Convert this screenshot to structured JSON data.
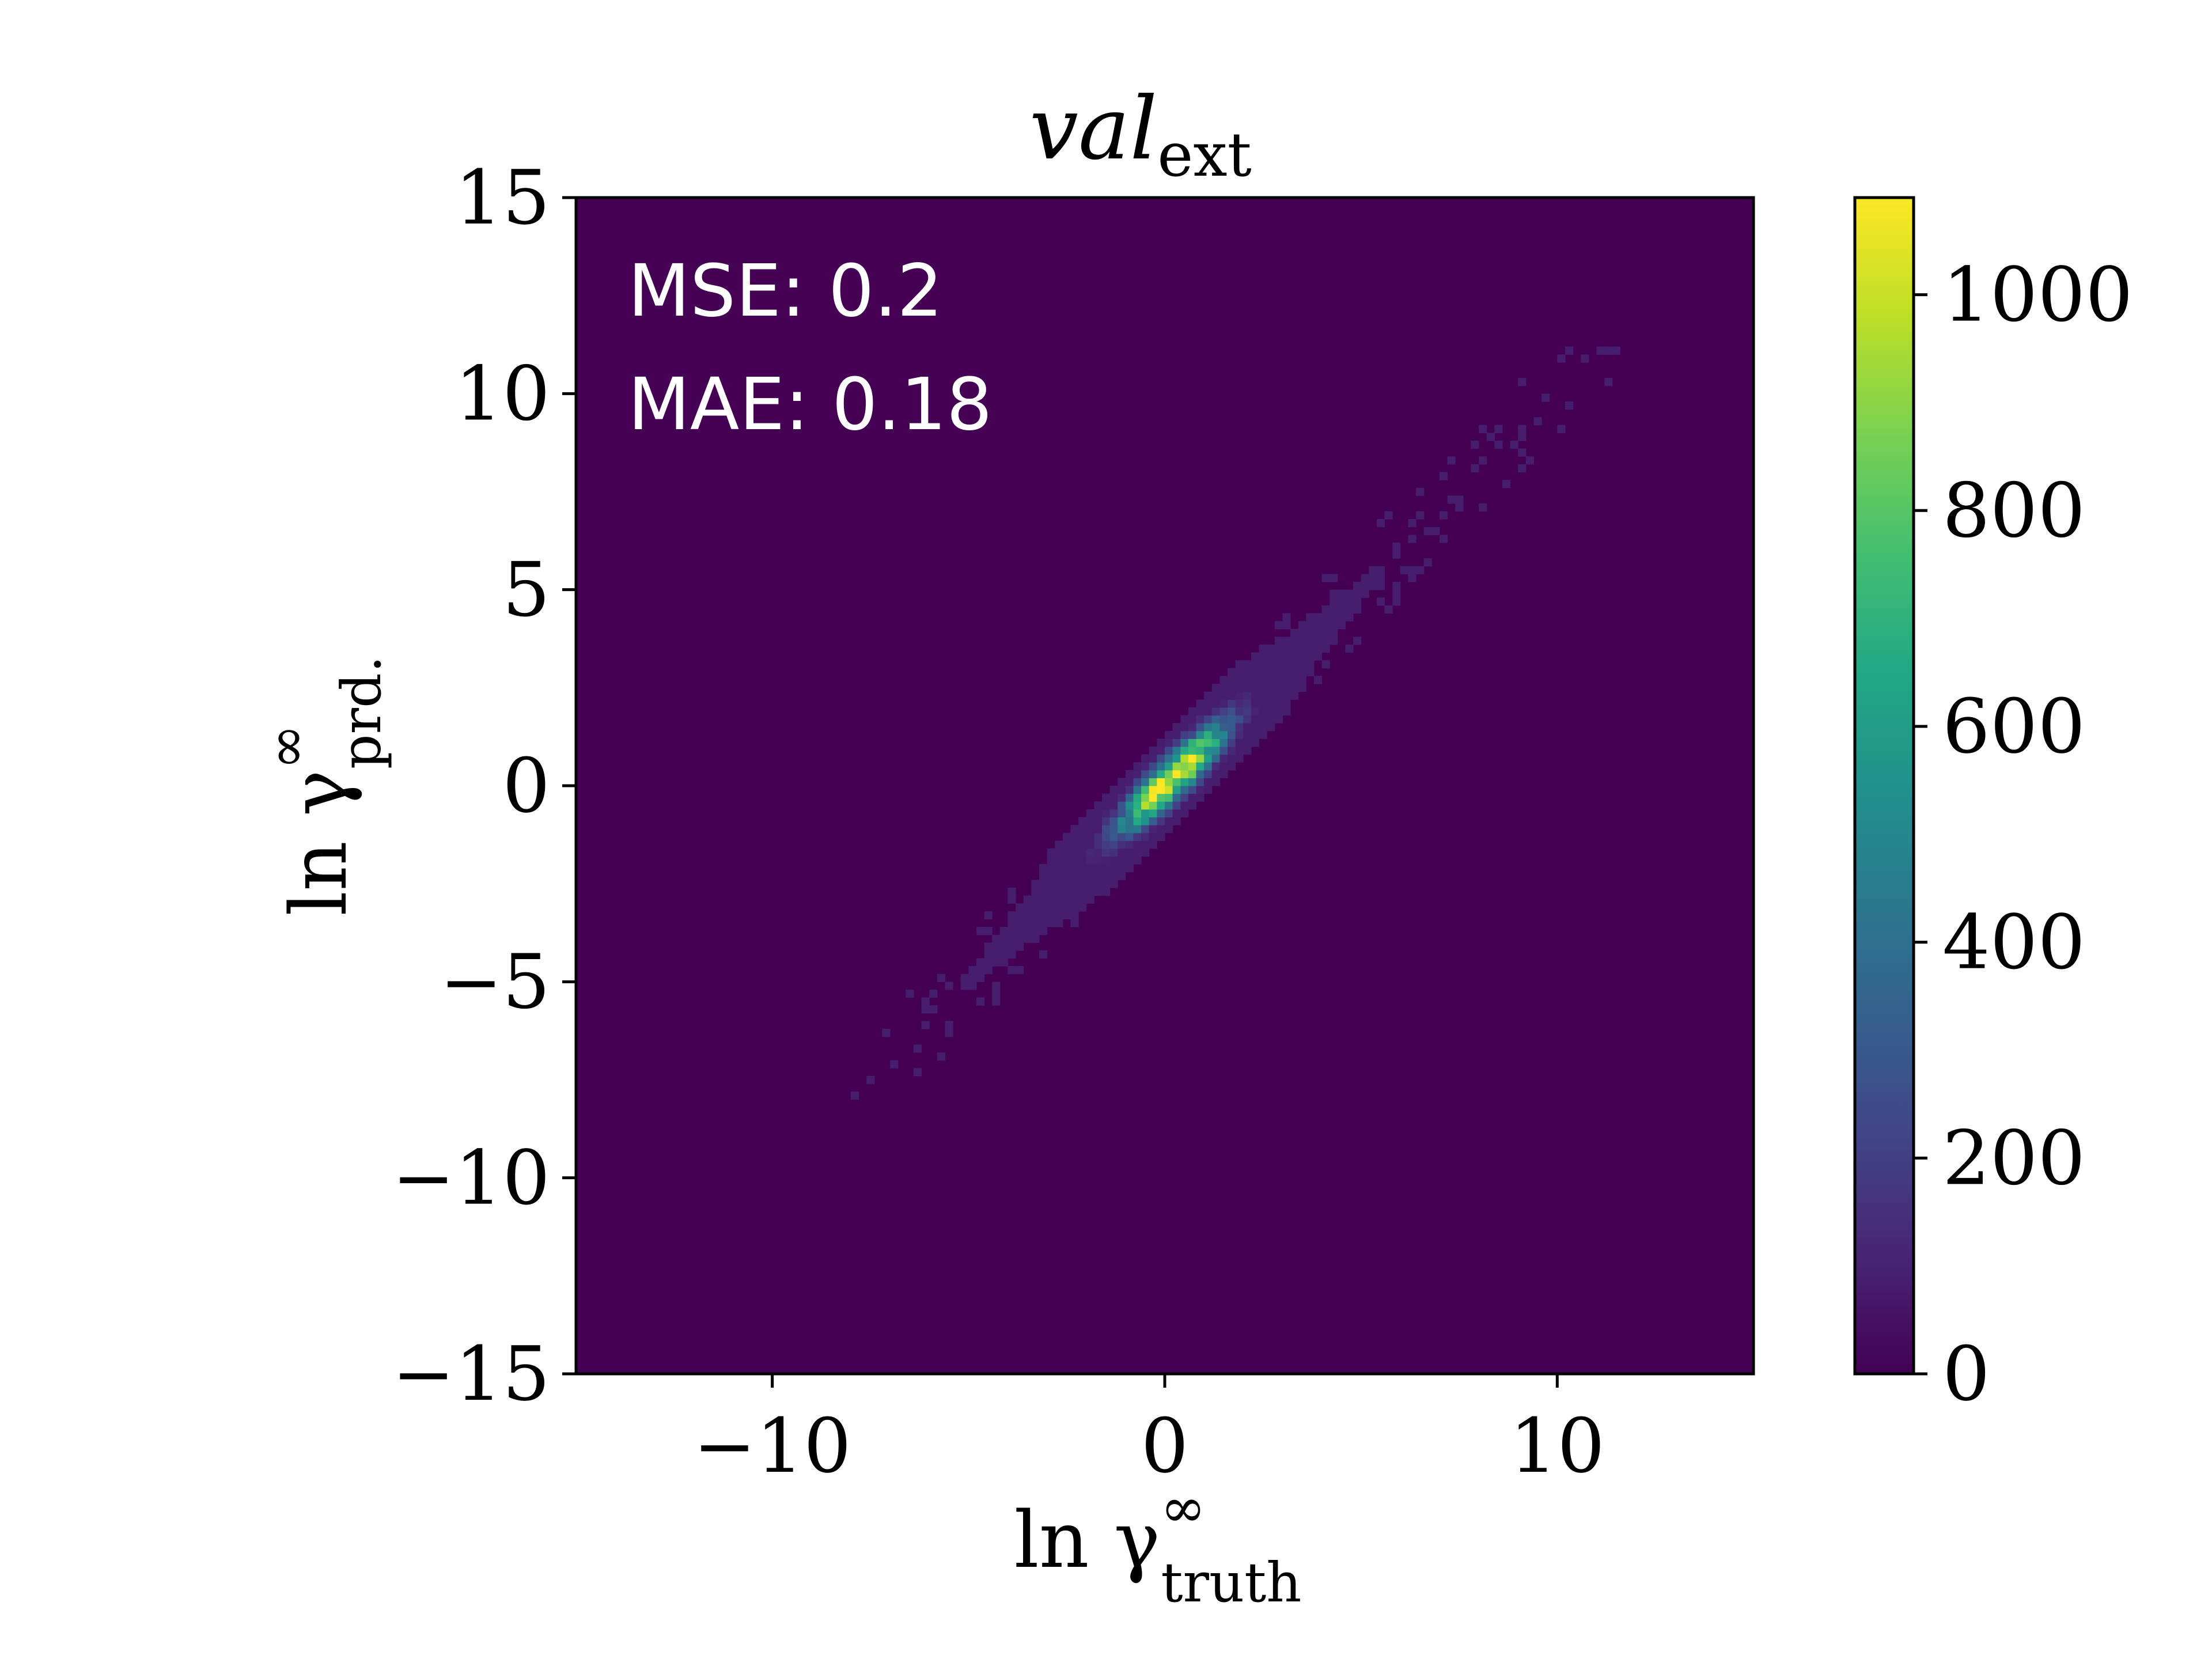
{
  "chart_data": {
    "type": "heatmap",
    "subtype": "2d-histogram",
    "title": {
      "main": "val",
      "sub": "ext"
    },
    "xlabel": {
      "main": "ln γ",
      "sup": "∞",
      "sub": "truth"
    },
    "ylabel": {
      "main": "ln γ",
      "sup": "∞",
      "sub": "prd."
    },
    "xlim": [
      -15,
      15
    ],
    "ylim": [
      -15,
      15
    ],
    "x_ticks": [
      -10,
      0,
      10
    ],
    "x_tick_labels": [
      "−10",
      "0",
      "10"
    ],
    "y_ticks": [
      -15,
      -10,
      -5,
      0,
      5,
      10,
      15
    ],
    "y_tick_labels": [
      "−15",
      "−10",
      "−5",
      "0",
      "5",
      "10",
      "15"
    ],
    "colormap": "viridis",
    "colorbar": {
      "range": [
        0,
        1090
      ],
      "ticks": [
        0,
        200,
        400,
        600,
        800,
        1000
      ],
      "tick_labels": [
        "0",
        "200",
        "400",
        "600",
        "800",
        "1000"
      ]
    },
    "annotations": [
      "MSE: 0.2",
      "MAE: 0.18"
    ],
    "density_model": {
      "description": "Counts concentrated along the diagonal y = x, peak near (0, 0)",
      "peak_count": 1090,
      "center": [
        0.2,
        0.2
      ],
      "along_diagonal_sigma": 1.3,
      "across_diagonal_sigma": 0.32,
      "diagonal_extent": [
        -8,
        11.5
      ]
    },
    "background_count": 0
  },
  "colors": {
    "background_cell": "#440154",
    "axis": "#000000",
    "annotation_text": "#ffffff"
  }
}
